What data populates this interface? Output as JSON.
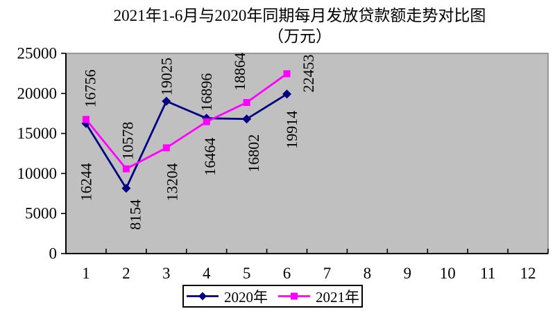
{
  "chart_data": {
    "type": "line",
    "title": "2021年1-6月与2020年同期每月发放贷款额走势对比图",
    "subtitle": "（万元）",
    "x": [
      1,
      2,
      3,
      4,
      5,
      6,
      7,
      8,
      9,
      10,
      11,
      12
    ],
    "series": [
      {
        "name": "2020年",
        "color": "#000080",
        "marker": "diamond",
        "values": [
          16244,
          8154,
          19025,
          16896,
          16802,
          19914
        ]
      },
      {
        "name": "2021年",
        "color": "#FF00FF",
        "marker": "square",
        "values": [
          16756,
          10578,
          13204,
          16464,
          18864,
          22453
        ]
      }
    ],
    "ylim": [
      0,
      25000
    ],
    "ytick_step": 5000,
    "yticks": [
      0,
      5000,
      10000,
      15000,
      20000,
      25000
    ],
    "grid": false,
    "data_labels": true,
    "legend_position": "bottom",
    "plot_bg_color": "#C0C0C0",
    "plot_border_color": "#808080",
    "axis_color": "#000000"
  }
}
